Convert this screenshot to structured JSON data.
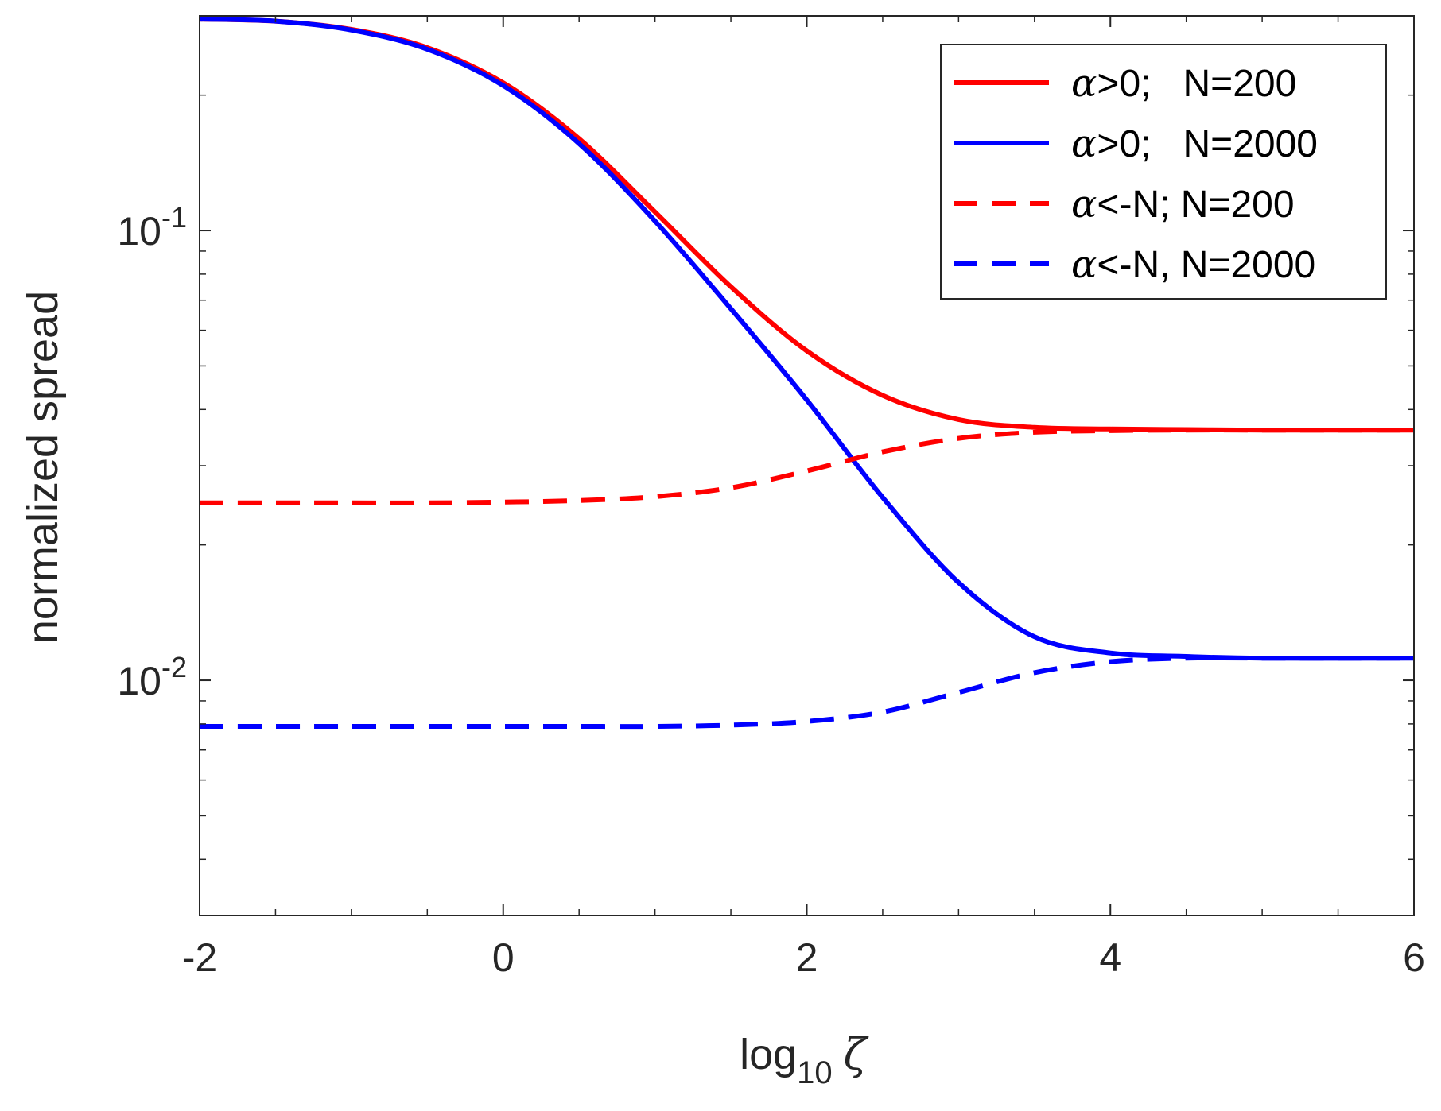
{
  "chart_data": {
    "type": "line",
    "title": "",
    "xlabel": {
      "base": "log",
      "subscript": "10",
      "symbol": "ζ"
    },
    "ylabel": "normalized spread",
    "xlim": [
      -2,
      6
    ],
    "ylim": [
      0.003,
      0.3
    ],
    "yscale": "log",
    "x_ticks": [
      -2,
      0,
      2,
      4,
      6
    ],
    "x_tick_labels": [
      "-2",
      "0",
      "2",
      "4",
      "6"
    ],
    "y_ticks": [
      0.01,
      0.1
    ],
    "y_tick_labels": [
      {
        "base": "10",
        "exp": "-2"
      },
      {
        "base": "10",
        "exp": "-1"
      }
    ],
    "legend_position": "top-right",
    "series": [
      {
        "name": "α>0;   N=200",
        "symbol": "α",
        "rest": ">0;   N=200",
        "color": "#ff0000",
        "style": "solid",
        "x": [
          -2,
          -1.5,
          -1,
          -0.5,
          0,
          0.5,
          1,
          1.5,
          2,
          2.5,
          3,
          3.5,
          4,
          4.5,
          5,
          6
        ],
        "y": [
          0.295,
          0.292,
          0.28,
          0.255,
          0.213,
          0.16,
          0.11,
          0.075,
          0.054,
          0.043,
          0.038,
          0.0365,
          0.0362,
          0.0361,
          0.036,
          0.036
        ]
      },
      {
        "name": "α>0;   N=2000",
        "symbol": "α",
        "rest": ">0;   N=2000",
        "color": "#0000ff",
        "style": "solid",
        "x": [
          -2,
          -1.5,
          -1,
          -0.5,
          0,
          0.5,
          1,
          1.5,
          2,
          2.5,
          3,
          3.5,
          4,
          4.5,
          5,
          6
        ],
        "y": [
          0.295,
          0.292,
          0.279,
          0.253,
          0.21,
          0.156,
          0.105,
          0.067,
          0.042,
          0.0255,
          0.0165,
          0.0125,
          0.0115,
          0.0113,
          0.0112,
          0.0112
        ]
      },
      {
        "name": "α<-N; N=200",
        "symbol": "α",
        "rest": "<-N; N=200",
        "color": "#ff0000",
        "style": "dashed",
        "x": [
          -2,
          -1.5,
          -1,
          -0.5,
          0,
          0.5,
          1,
          1.5,
          2,
          2.5,
          3,
          3.5,
          4,
          4.5,
          5,
          6
        ],
        "y": [
          0.0248,
          0.0248,
          0.0248,
          0.0248,
          0.0249,
          0.0251,
          0.0256,
          0.0268,
          0.0292,
          0.0322,
          0.0345,
          0.0356,
          0.0359,
          0.036,
          0.036,
          0.036
        ]
      },
      {
        "name": "α<-N, N=2000",
        "symbol": "α",
        "rest": "<-N, N=2000",
        "color": "#0000ff",
        "style": "dashed",
        "x": [
          -2,
          -1.5,
          -1,
          -0.5,
          0,
          0.5,
          1,
          1.5,
          2,
          2.5,
          3,
          3.5,
          4,
          4.5,
          5,
          6
        ],
        "y": [
          0.0079,
          0.0079,
          0.0079,
          0.0079,
          0.0079,
          0.0079,
          0.0079,
          0.00795,
          0.0081,
          0.0085,
          0.0094,
          0.0104,
          0.011,
          0.0112,
          0.0112,
          0.0112
        ]
      }
    ]
  }
}
